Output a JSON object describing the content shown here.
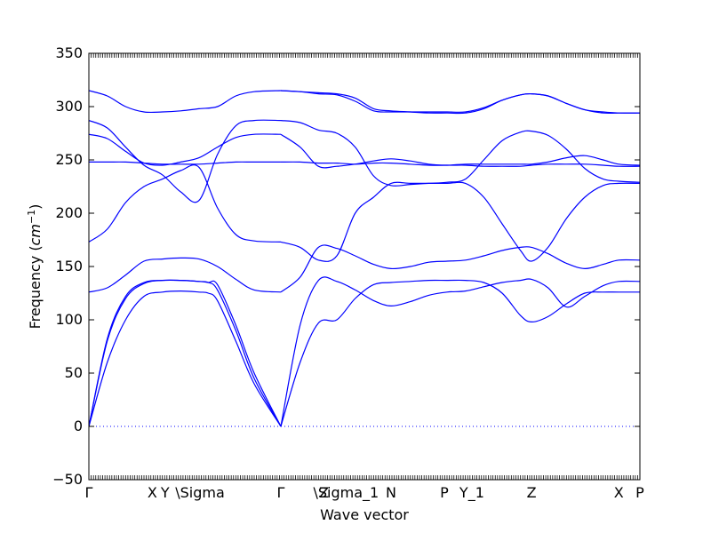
{
  "chart_data": {
    "type": "line",
    "title": "",
    "xlabel": "Wave vector",
    "ylabel": "Frequency ($cm^{-1}$)",
    "ylabel_parts": {
      "prefix": "Frequency (",
      "italic": "cm",
      "superscript": "−1",
      "suffix": ")"
    },
    "ylim": [
      -50,
      350
    ],
    "yticks": [
      -50,
      0,
      50,
      100,
      150,
      200,
      250,
      300,
      350
    ],
    "xlim": [
      0,
      30
    ],
    "high_symmetry_points": [
      {
        "label": "Γ",
        "x": 0
      },
      {
        "label": "X",
        "x": 3.45
      },
      {
        "label": "Y",
        "x": 4.15
      },
      {
        "label": "\\Sigma",
        "x": 6.05
      },
      {
        "label": "Γ",
        "x": 10.45
      },
      {
        "label": "Z",
        "x": 12.8
      },
      {
        "label": "\\Sigma_1",
        "x": 14.0
      },
      {
        "label": "N",
        "x": 16.45
      },
      {
        "label": "P",
        "x": 19.35
      },
      {
        "label": "Y_1",
        "x": 20.85
      },
      {
        "label": "Z",
        "x": 24.1
      },
      {
        "label": "X",
        "x": 28.85
      },
      {
        "label": "P",
        "x": 30
      }
    ],
    "line_color": "#0000ff",
    "zero_line": {
      "y": 0,
      "style": "dotted",
      "color": "#0000ff"
    },
    "series": [
      {
        "x": [
          0,
          1,
          2,
          3,
          4,
          5,
          6,
          6.5,
          7,
          8,
          9,
          10.45
        ],
        "values": [
          0,
          60,
          100,
          122,
          126,
          127,
          126,
          125,
          118,
          80,
          40,
          0
        ]
      },
      {
        "x": [
          0,
          1,
          2,
          3,
          4,
          5,
          6,
          6.5,
          7,
          8,
          9,
          10.45
        ],
        "values": [
          0,
          80,
          120,
          134,
          137,
          137,
          136,
          135,
          128,
          90,
          45,
          0
        ]
      },
      {
        "x": [
          0,
          1,
          2,
          3,
          4,
          5,
          6,
          6.5,
          7,
          8,
          9,
          10.45
        ],
        "values": [
          0,
          82,
          122,
          135,
          137,
          137,
          136,
          135,
          133,
          95,
          50,
          0
        ]
      },
      {
        "x": [
          0,
          1,
          2,
          3,
          4,
          5,
          6,
          7,
          8,
          9,
          10.45
        ],
        "values": [
          126,
          130,
          142,
          155,
          157,
          158,
          157,
          150,
          138,
          128,
          126
        ]
      },
      {
        "x": [
          0,
          1,
          2,
          3,
          4,
          5,
          6,
          7,
          8,
          9,
          10.45
        ],
        "values": [
          173,
          185,
          210,
          225,
          232,
          240,
          243,
          205,
          180,
          174,
          173
        ]
      },
      {
        "x": [
          0,
          1,
          2,
          3,
          4,
          5,
          6,
          7,
          8,
          9,
          10.45
        ],
        "values": [
          248,
          248,
          248,
          247,
          246,
          246,
          246,
          247,
          248,
          248,
          248
        ]
      },
      {
        "x": [
          0,
          1,
          2,
          3,
          4,
          5,
          6,
          7,
          8,
          9,
          10.45
        ],
        "values": [
          274,
          270,
          258,
          247,
          245,
          248,
          252,
          262,
          271,
          274,
          274
        ]
      },
      {
        "x": [
          0,
          1,
          2,
          3,
          4,
          5,
          6,
          7,
          8,
          9,
          10.45
        ],
        "values": [
          287,
          280,
          262,
          245,
          236,
          220,
          212,
          255,
          282,
          287,
          287
        ]
      },
      {
        "x": [
          0,
          1,
          2,
          3,
          4,
          5,
          6,
          7,
          8,
          9,
          10.45
        ],
        "values": [
          315,
          310,
          300,
          295,
          295,
          296,
          298,
          300,
          310,
          314,
          315
        ]
      },
      {
        "x": [
          10.45,
          11.5,
          12.5,
          13.5,
          14.5,
          15.5,
          16.45,
          17.5,
          18.5,
          19.5,
          20.5,
          21.5,
          22.5,
          23.5,
          24.1,
          25,
          26,
          27,
          28,
          28.85,
          30
        ],
        "values": [
          0,
          60,
          97,
          100,
          120,
          133,
          135,
          136,
          137,
          137,
          137,
          135,
          125,
          104,
          98,
          103,
          115,
          125,
          126,
          126,
          126
        ]
      },
      {
        "x": [
          10.45,
          11.5,
          12.5,
          13.5,
          14.5,
          15.5,
          16.45,
          17.5,
          18.5,
          19.5,
          20.5,
          21.5,
          22.5,
          23.5,
          24.1,
          25,
          26,
          27,
          28,
          28.85,
          30
        ],
        "values": [
          0,
          95,
          137,
          136,
          128,
          118,
          113,
          117,
          123,
          126,
          127,
          131,
          135,
          137,
          138,
          130,
          112,
          122,
          132,
          136,
          136
        ]
      },
      {
        "x": [
          10.45,
          11.5,
          12.5,
          13.5,
          14.5,
          15.5,
          16.45,
          17.5,
          18.5,
          19.5,
          20.5,
          21.5,
          22.5,
          23.5,
          24.1,
          25,
          26,
          27,
          28,
          28.85,
          30
        ],
        "values": [
          173,
          168,
          156,
          160,
          200,
          215,
          228,
          228,
          228,
          228,
          228,
          215,
          190,
          165,
          155,
          168,
          195,
          215,
          226,
          228,
          228
        ]
      },
      {
        "x": [
          10.45,
          11.5,
          12.5,
          13.5,
          14.5,
          15.5,
          16.45,
          17.5,
          18.5,
          19.5,
          20.5,
          21.5,
          22.5,
          23.5,
          24.1,
          25,
          26,
          27,
          28,
          28.85,
          30
        ],
        "values": [
          126,
          140,
          168,
          167,
          160,
          152,
          148,
          150,
          154,
          155,
          156,
          160,
          165,
          168,
          168,
          162,
          153,
          148,
          152,
          156,
          156
        ]
      },
      {
        "x": [
          10.45,
          11.5,
          12.5,
          13.5,
          14.5,
          15.5,
          16.45,
          17.5,
          18.5,
          19.5,
          20.5,
          21.5,
          22.5,
          23.5,
          24.1,
          25,
          26,
          27,
          28,
          28.85,
          30
        ],
        "values": [
          248,
          248,
          247,
          247,
          246,
          247,
          247,
          246,
          245,
          245,
          246,
          246,
          246,
          246,
          246,
          248,
          252,
          254,
          250,
          246,
          245
        ]
      },
      {
        "x": [
          10.45,
          11.5,
          12.5,
          13.5,
          14.5,
          15.5,
          16.45,
          17.5,
          18.5,
          19.5,
          20.5,
          21.5,
          22.5,
          23.5,
          24.1,
          25,
          26,
          27,
          28,
          28.85,
          30
        ],
        "values": [
          274,
          262,
          244,
          244,
          246,
          249,
          251,
          249,
          246,
          245,
          245,
          244,
          244,
          244,
          245,
          246,
          246,
          246,
          245,
          244,
          244
        ]
      },
      {
        "x": [
          10.45,
          11.5,
          12.5,
          13.5,
          14.5,
          15.5,
          16.45,
          17.5,
          18.5,
          19.5,
          20.5,
          21.5,
          22.5,
          23.5,
          24.1,
          25,
          26,
          27,
          28,
          28.85,
          30
        ],
        "values": [
          287,
          285,
          278,
          275,
          262,
          235,
          226,
          227,
          228,
          229,
          232,
          250,
          268,
          276,
          277,
          273,
          260,
          242,
          232,
          230,
          229
        ]
      },
      {
        "x": [
          10.45,
          11.5,
          12.5,
          13.5,
          14.5,
          15.5,
          16.45,
          17.5,
          18.5,
          19.5,
          20.5,
          21.5,
          22.5,
          23.5,
          24.1,
          25,
          26,
          27,
          28,
          28.85,
          30
        ],
        "values": [
          315,
          314,
          313,
          312,
          308,
          298,
          296,
          295,
          294,
          294,
          294,
          298,
          306,
          311,
          312,
          310,
          303,
          297,
          294,
          294,
          294
        ]
      },
      {
        "x": [
          10.45,
          11.5,
          12.5,
          13.5,
          14.5,
          15.5,
          16.45,
          17.5,
          18.5,
          19.5,
          20.5,
          21.5,
          22.5,
          23.5,
          24.1,
          25,
          26,
          27,
          28,
          28.85,
          30
        ],
        "values": [
          315,
          314,
          312,
          311,
          305,
          296,
          295,
          295,
          295,
          295,
          295,
          299,
          306,
          311,
          312,
          310,
          303,
          297,
          295,
          294,
          294
        ]
      }
    ]
  }
}
